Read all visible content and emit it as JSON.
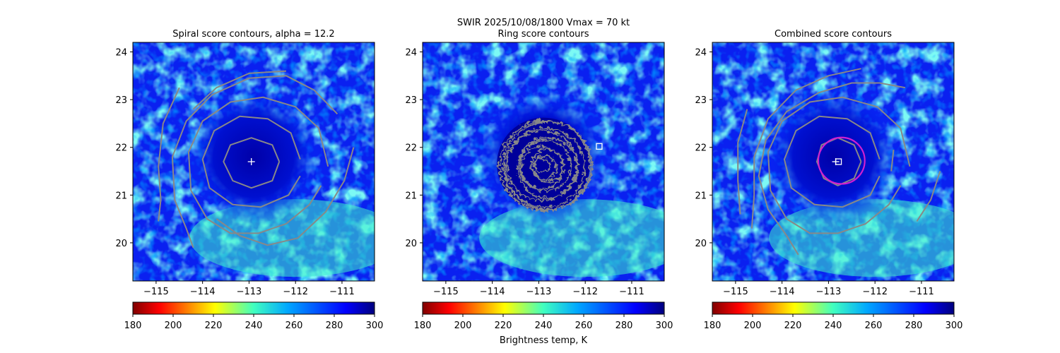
{
  "suptitle": "SWIR  2025/10/08/1800    Vmax = 70 kt",
  "colorbar_label": "Brightness temp, K",
  "chart_data": [
    {
      "type": "heatmap",
      "title": "Spiral score contours, alpha = 12.2",
      "xlim": [
        -115.5,
        -110.3
      ],
      "ylim": [
        19.2,
        24.2
      ],
      "xticks": [
        -115,
        -114,
        -113,
        -112,
        -111
      ],
      "xtick_labels": [
        "−115",
        "−114",
        "−113",
        "−112",
        "−111"
      ],
      "yticks": [
        20,
        21,
        22,
        23,
        24
      ],
      "ytick_labels": [
        "20",
        "21",
        "22",
        "23",
        "24"
      ],
      "colorbar": {
        "range": [
          180,
          300
        ],
        "ticks": [
          "180",
          "200",
          "220",
          "240",
          "260",
          "280",
          "300"
        ],
        "colormap": "jet_r"
      },
      "center_marker": {
        "shape": "plus",
        "lon": -112.95,
        "lat": 21.7
      },
      "contours": [
        {
          "color": "#888888",
          "points": [
            [
              -112.35,
              21.7
            ],
            [
              -112.5,
              22.05
            ],
            [
              -112.95,
              22.2
            ],
            [
              -113.4,
              22.05
            ],
            [
              -113.55,
              21.7
            ],
            [
              -113.35,
              21.3
            ],
            [
              -112.95,
              21.15
            ],
            [
              -112.5,
              21.3
            ],
            [
              -112.35,
              21.7
            ]
          ]
        },
        {
          "color": "#888888",
          "points": [
            [
              -111.9,
              21.75
            ],
            [
              -112.1,
              22.3
            ],
            [
              -112.6,
              22.6
            ],
            [
              -113.2,
              22.65
            ],
            [
              -113.75,
              22.35
            ],
            [
              -114.0,
              21.75
            ],
            [
              -113.85,
              21.15
            ],
            [
              -113.35,
              20.8
            ],
            [
              -112.75,
              20.75
            ],
            [
              -112.15,
              21.0
            ],
            [
              -111.9,
              21.4
            ]
          ]
        },
        {
          "color": "#888888",
          "points": [
            [
              -111.3,
              21.6
            ],
            [
              -111.5,
              22.4
            ],
            [
              -112.0,
              22.85
            ],
            [
              -112.7,
              23.05
            ],
            [
              -113.4,
              22.95
            ],
            [
              -114.0,
              22.55
            ],
            [
              -114.3,
              21.9
            ],
            [
              -114.25,
              21.1
            ],
            [
              -113.9,
              20.5
            ],
            [
              -113.4,
              20.2
            ],
            [
              -112.8,
              20.2
            ],
            [
              -112.2,
              20.4
            ],
            [
              -111.7,
              20.8
            ],
            [
              -111.45,
              21.2
            ]
          ]
        },
        {
          "color": "#888888",
          "points": [
            [
              -110.75,
              22.0
            ],
            [
              -110.95,
              21.3
            ],
            [
              -111.35,
              20.65
            ],
            [
              -111.95,
              20.1
            ],
            [
              -112.6,
              19.95
            ],
            [
              -113.2,
              20.15
            ],
            [
              -113.7,
              20.5
            ]
          ]
        },
        {
          "color": "#888888",
          "points": [
            [
              -111.1,
              22.7
            ],
            [
              -111.6,
              23.2
            ],
            [
              -112.2,
              23.5
            ],
            [
              -113.0,
              23.45
            ],
            [
              -113.8,
              23.1
            ],
            [
              -114.35,
              22.55
            ],
            [
              -114.65,
              21.8
            ],
            [
              -114.6,
              20.9
            ],
            [
              -114.35,
              20.3
            ],
            [
              -114.2,
              19.9
            ]
          ]
        },
        {
          "color": "#888888",
          "points": [
            [
              -112.2,
              23.6
            ],
            [
              -113.0,
              23.55
            ],
            [
              -113.7,
              23.25
            ],
            [
              -114.2,
              22.8
            ]
          ]
        },
        {
          "color": "#888888",
          "points": [
            [
              -114.5,
              23.25
            ],
            [
              -114.85,
              22.5
            ],
            [
              -114.95,
              21.6
            ],
            [
              -114.9,
              20.9
            ],
            [
              -114.95,
              20.45
            ]
          ]
        }
      ]
    },
    {
      "type": "heatmap",
      "title": "Ring score contours",
      "xlim": [
        -115.5,
        -110.3
      ],
      "ylim": [
        19.2,
        24.2
      ],
      "xticks": [
        -115,
        -114,
        -113,
        -112,
        -111
      ],
      "xtick_labels": [
        "−115",
        "−114",
        "−113",
        "−112",
        "−111"
      ],
      "yticks": [
        20,
        21,
        22,
        23,
        24
      ],
      "ytick_labels": [
        "20",
        "21",
        "22",
        "23",
        "24"
      ],
      "colorbar": {
        "range": [
          180,
          300
        ],
        "ticks": [
          "180",
          "200",
          "220",
          "240",
          "260",
          "280",
          "300"
        ],
        "colormap": "jet_r"
      },
      "center_marker": {
        "shape": "square",
        "lon": -111.7,
        "lat": 22.02
      },
      "ring_region": {
        "lon": -112.9,
        "lat": 21.65,
        "radius_deg": 1.0,
        "color": "#888888"
      },
      "contours": []
    },
    {
      "type": "heatmap",
      "title": "Combined score contours",
      "xlim": [
        -115.5,
        -110.3
      ],
      "ylim": [
        19.2,
        24.2
      ],
      "xticks": [
        -115,
        -114,
        -113,
        -112,
        -111
      ],
      "xtick_labels": [
        "−115",
        "−114",
        "−113",
        "−112",
        "−111"
      ],
      "yticks": [
        20,
        21,
        22,
        23,
        24
      ],
      "ytick_labels": [
        "20",
        "21",
        "22",
        "23",
        "24"
      ],
      "colorbar": {
        "range": [
          180,
          300
        ],
        "ticks": [
          "180",
          "200",
          "220",
          "240",
          "260",
          "280",
          "300"
        ],
        "colormap": "jet_r"
      },
      "center_marker": {
        "shape": "plus-square",
        "lon": -112.8,
        "lat": 21.7
      },
      "magenta_ring": {
        "lon": -112.72,
        "lat": 21.72,
        "radius_deg": 0.5,
        "color": "#d020d0"
      },
      "contours": [
        {
          "color": "#888888",
          "points": [
            [
              -112.3,
              21.7
            ],
            [
              -112.45,
              22.05
            ],
            [
              -112.8,
              22.2
            ],
            [
              -113.15,
              22.05
            ],
            [
              -113.25,
              21.7
            ],
            [
              -113.1,
              21.35
            ],
            [
              -112.8,
              21.2
            ],
            [
              -112.45,
              21.35
            ],
            [
              -112.3,
              21.7
            ]
          ]
        },
        {
          "color": "#888888",
          "points": [
            [
              -111.9,
              21.75
            ],
            [
              -112.1,
              22.3
            ],
            [
              -112.6,
              22.6
            ],
            [
              -113.2,
              22.65
            ],
            [
              -113.7,
              22.35
            ],
            [
              -113.95,
              21.75
            ],
            [
              -113.8,
              21.15
            ],
            [
              -113.3,
              20.8
            ],
            [
              -112.7,
              20.75
            ],
            [
              -112.1,
              21.0
            ],
            [
              -111.9,
              21.4
            ]
          ]
        },
        {
          "color": "#888888",
          "points": [
            [
              -111.25,
              21.6
            ],
            [
              -111.45,
              22.4
            ],
            [
              -111.95,
              22.85
            ],
            [
              -112.7,
              23.05
            ],
            [
              -113.4,
              22.95
            ],
            [
              -114.0,
              22.55
            ],
            [
              -114.3,
              21.9
            ],
            [
              -114.25,
              21.1
            ],
            [
              -113.9,
              20.5
            ],
            [
              -113.4,
              20.2
            ],
            [
              -112.8,
              20.2
            ],
            [
              -112.2,
              20.4
            ],
            [
              -111.7,
              20.8
            ],
            [
              -111.45,
              21.2
            ]
          ]
        },
        {
          "color": "#888888",
          "points": [
            [
              -110.6,
              21.5
            ],
            [
              -110.8,
              20.9
            ],
            [
              -111.1,
              20.45
            ]
          ]
        },
        {
          "color": "#888888",
          "points": [
            [
              -111.35,
              23.25
            ],
            [
              -111.9,
              23.35
            ],
            [
              -112.5,
              23.35
            ],
            [
              -113.2,
              23.15
            ],
            [
              -113.9,
              22.75
            ],
            [
              -114.35,
              22.15
            ],
            [
              -114.5,
              21.4
            ],
            [
              -114.3,
              20.7
            ],
            [
              -113.9,
              20.15
            ],
            [
              -113.65,
              19.75
            ]
          ]
        },
        {
          "color": "#888888",
          "points": [
            [
              -112.3,
              23.65
            ],
            [
              -113.0,
              23.5
            ],
            [
              -113.7,
              23.2
            ],
            [
              -114.3,
              22.6
            ],
            [
              -114.6,
              21.8
            ],
            [
              -114.6,
              21.0
            ],
            [
              -114.65,
              20.3
            ]
          ]
        },
        {
          "color": "#888888",
          "points": [
            [
              -114.75,
              22.8
            ],
            [
              -114.95,
              22.1
            ],
            [
              -114.95,
              21.3
            ],
            [
              -114.9,
              20.6
            ]
          ]
        },
        {
          "color": "#888888",
          "points": [
            [
              -111.65,
              21.5
            ],
            [
              -111.6,
              21.95
            ]
          ]
        }
      ]
    }
  ]
}
